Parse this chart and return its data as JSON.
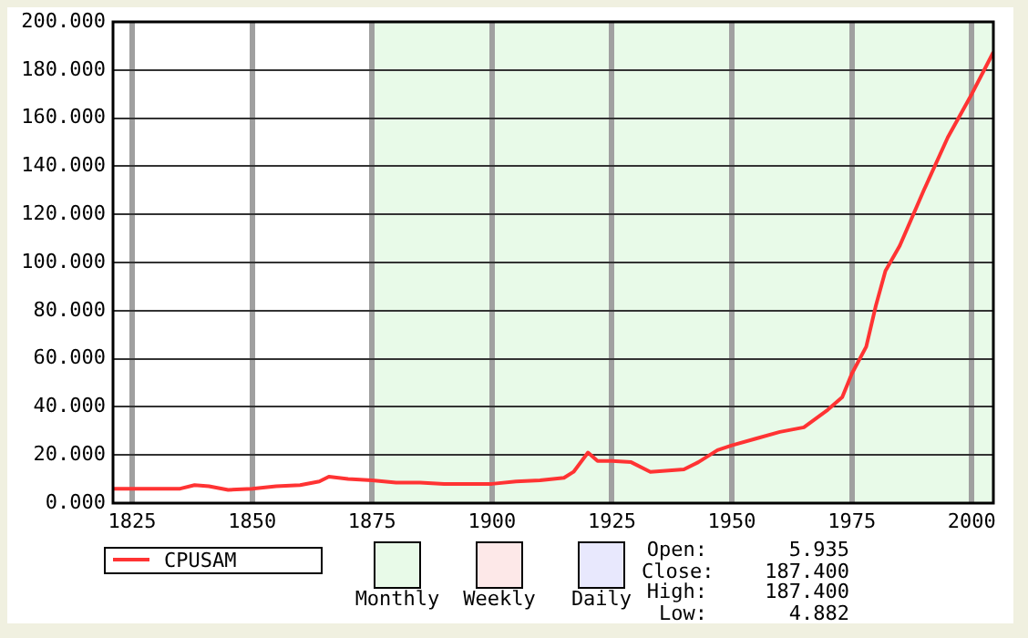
{
  "chart_data": {
    "type": "line",
    "x": [
      1821,
      1825,
      1835,
      1838,
      1841,
      1845,
      1850,
      1855,
      1860,
      1864,
      1866,
      1870,
      1875,
      1880,
      1885,
      1890,
      1895,
      1900,
      1905,
      1910,
      1915,
      1917,
      1920,
      1922,
      1925,
      1929,
      1933,
      1940,
      1943,
      1947,
      1950,
      1955,
      1960,
      1965,
      1970,
      1973,
      1975,
      1978,
      1980,
      1982,
      1985,
      1990,
      1995,
      2000,
      2004.5
    ],
    "series": [
      {
        "name": "CPUSAM",
        "color": "#ff3333",
        "values": [
          6,
          6,
          6,
          7.5,
          7,
          5.5,
          6,
          7,
          7.5,
          9,
          11,
          10,
          9.5,
          8.5,
          8.5,
          8,
          8,
          8,
          9,
          9.5,
          10.5,
          13,
          21,
          17.5,
          17.5,
          17,
          13,
          14,
          17,
          22,
          24,
          26.8,
          29.6,
          31.5,
          38.8,
          44,
          53.8,
          65,
          82,
          96.5,
          107,
          130,
          152,
          170,
          187.4
        ]
      }
    ],
    "xlim": [
      1821,
      2004.5
    ],
    "xticks": [
      1825,
      1850,
      1875,
      1900,
      1925,
      1950,
      1975,
      2000
    ],
    "ylim": [
      0,
      200
    ],
    "yticks": [
      {
        "value": 0,
        "label": "0.000"
      },
      {
        "value": 20,
        "label": "20.000"
      },
      {
        "value": 40,
        "label": "40.000"
      },
      {
        "value": 60,
        "label": "60.000"
      },
      {
        "value": 80,
        "label": "80.000"
      },
      {
        "value": 100,
        "label": "100.000"
      },
      {
        "value": 120,
        "label": "120.000"
      },
      {
        "value": 140,
        "label": "140.000"
      },
      {
        "value": 160,
        "label": "160.000"
      },
      {
        "value": 180,
        "label": "180.000"
      },
      {
        "value": 200,
        "label": "200.000"
      }
    ],
    "bands": [
      {
        "axis": "x",
        "from": 1875,
        "to": 2004.5,
        "color": "#e8fae8"
      }
    ],
    "annotations": [
      "Monthly",
      "Weekly",
      "Daily",
      "Open: 5.935",
      "Close: 187.400",
      "High: 187.400",
      "Low: 4.882"
    ],
    "grid": true,
    "legend": "bottom left",
    "line_style": "solid",
    "marker": "none"
  }
}
